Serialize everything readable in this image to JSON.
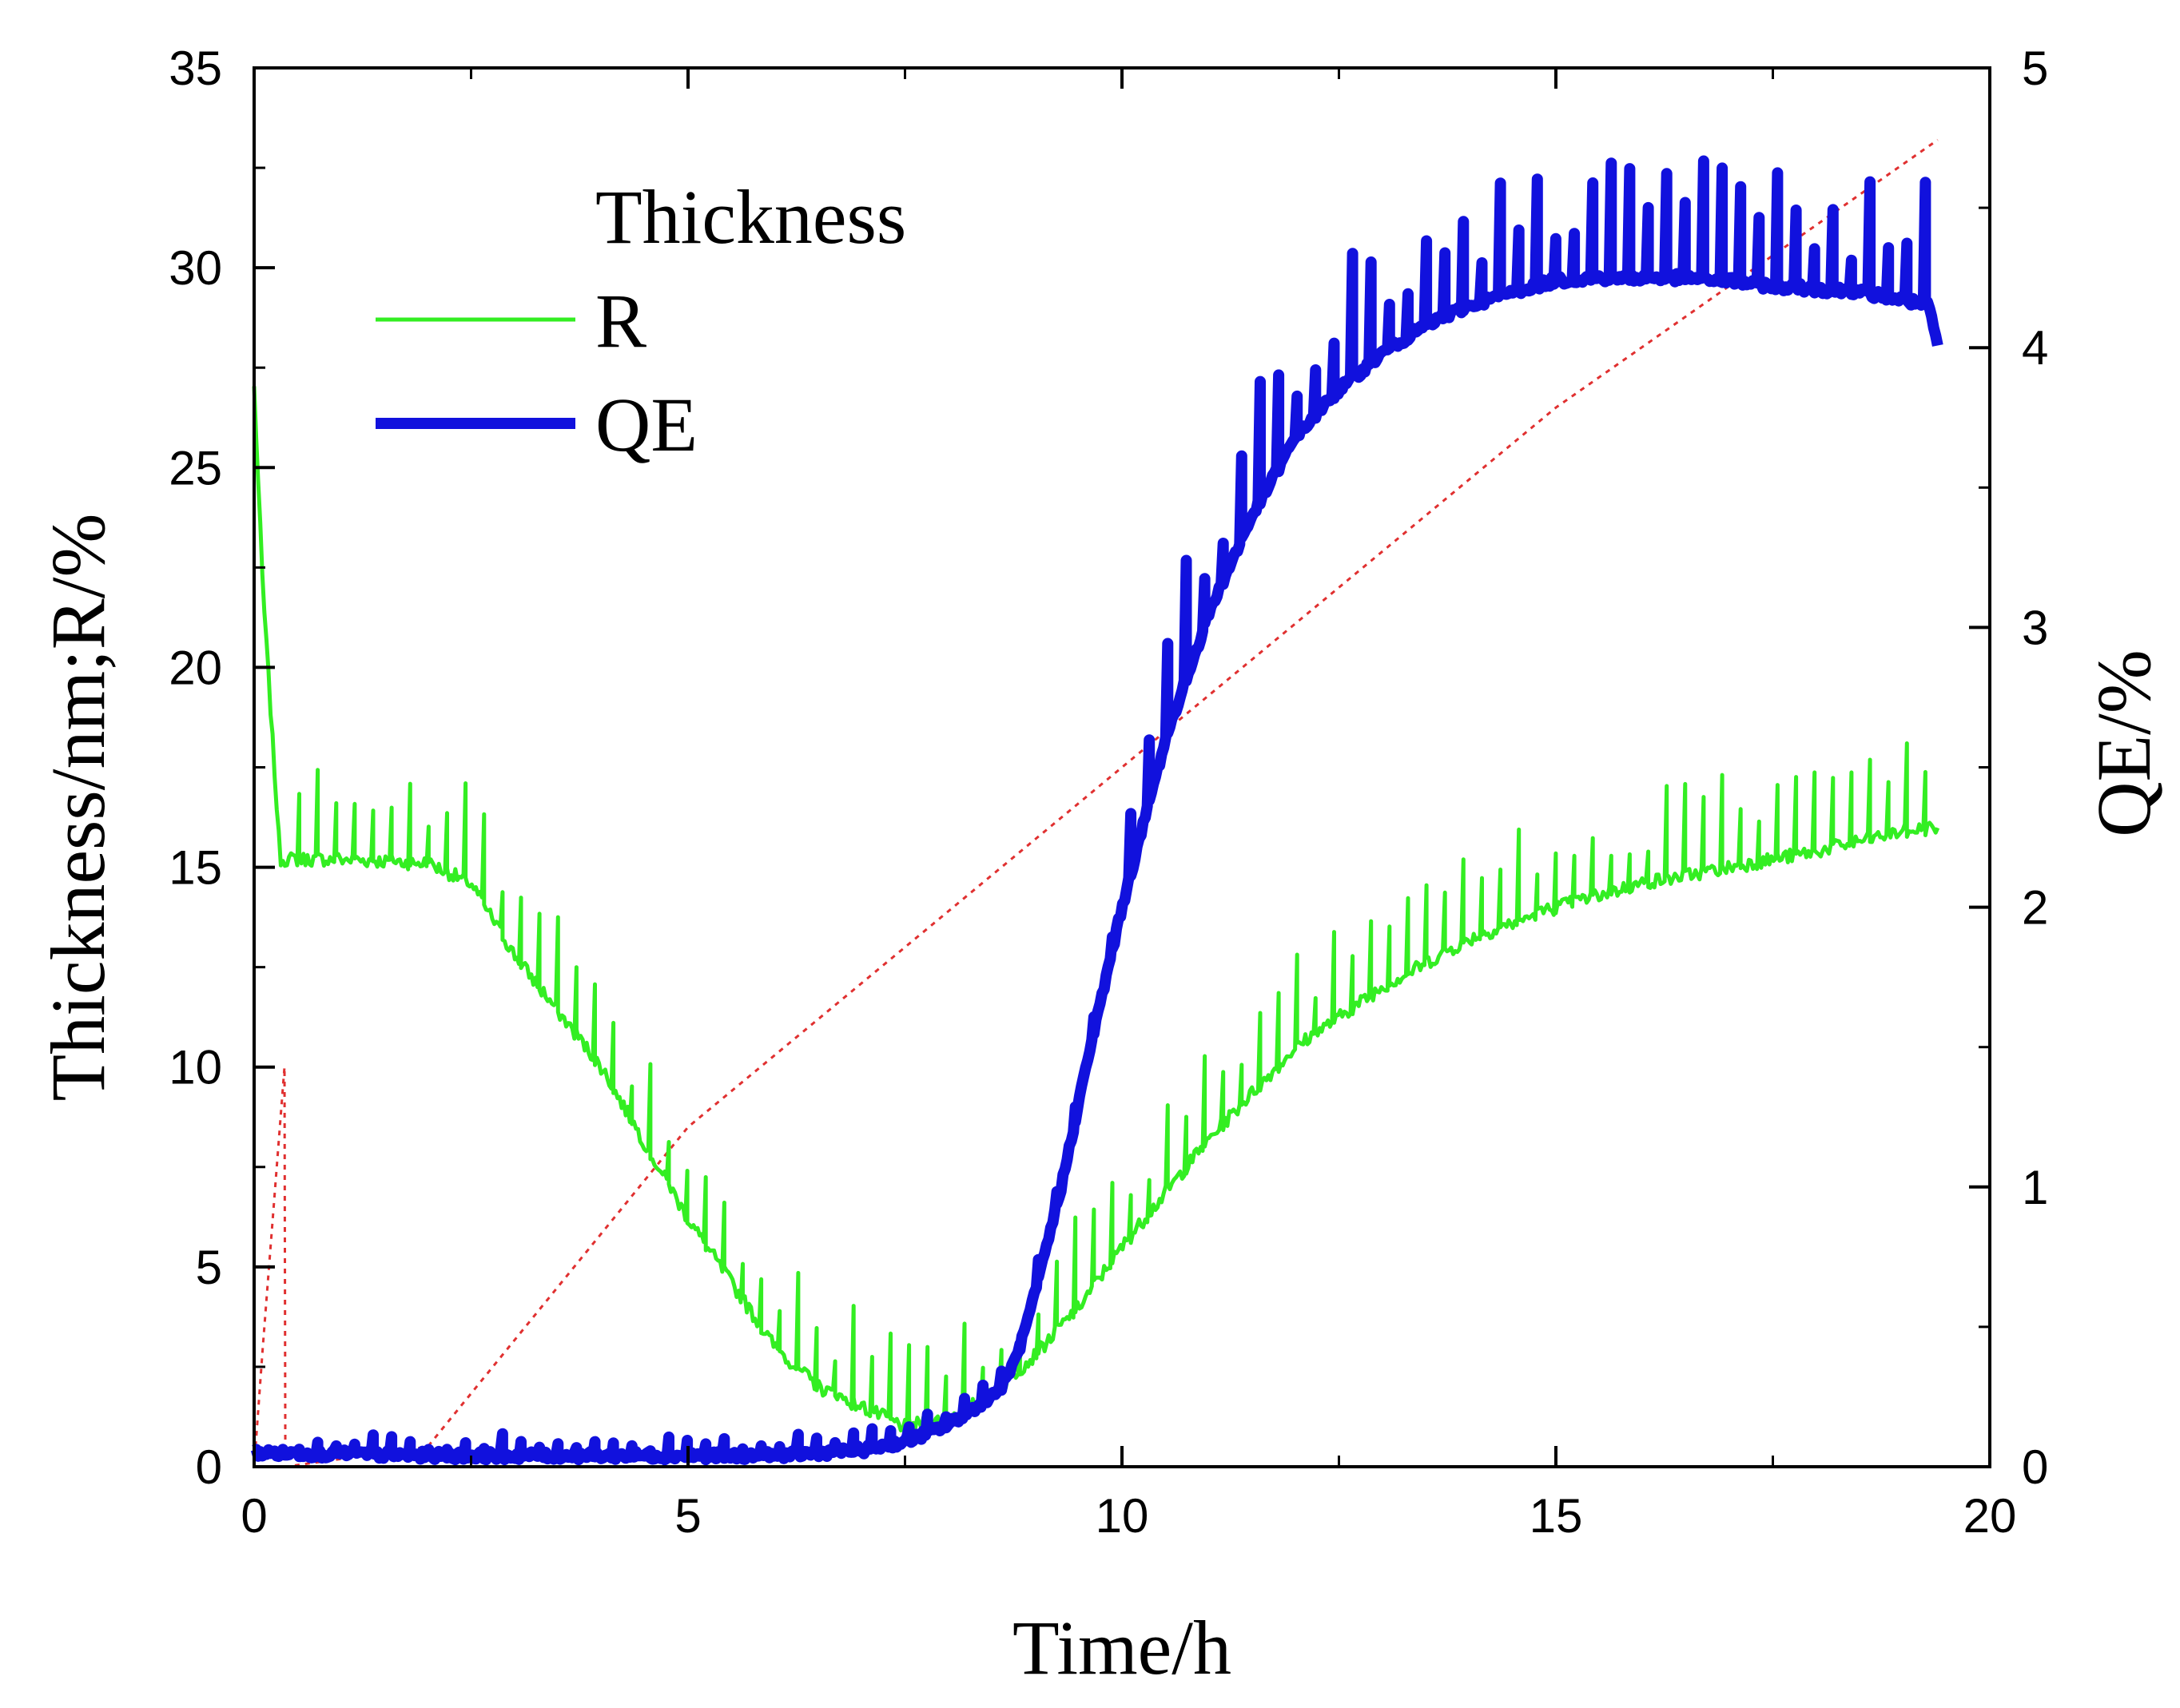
{
  "chart_data": {
    "type": "line",
    "title": "",
    "xlabel": "Time/h",
    "ylabel_left": "Thickness/nm;R/%",
    "ylabel_right": "QE/%",
    "xlim": [
      0,
      20
    ],
    "ylim_left": [
      0,
      35
    ],
    "ylim_right": [
      0,
      5
    ],
    "x_ticks": [
      0,
      5,
      10,
      15,
      20
    ],
    "y_ticks_left": [
      0,
      5,
      10,
      15,
      20,
      25,
      30,
      35
    ],
    "y_ticks_right": [
      0,
      1,
      2,
      3,
      4,
      5
    ],
    "grid": false,
    "legend_position": "top-left",
    "colors": {
      "thickness": "#e03030",
      "r": "#33ee22",
      "qe": "#1111dd"
    },
    "series": [
      {
        "name": "Thickness",
        "axis": "left",
        "style": "dotted",
        "x": [
          0,
          0.1,
          0.35,
          0.36,
          2.0,
          5.0,
          10.0,
          15.0,
          19.4
        ],
        "values": [
          0,
          3,
          10,
          0,
          0.5,
          8.5,
          17.5,
          26.5,
          33.2
        ]
      },
      {
        "name": "R",
        "axis": "left",
        "style": "noisy",
        "x": [
          0,
          0.1,
          0.3,
          1.0,
          2.0,
          2.5,
          3.0,
          4.0,
          5.0,
          6.0,
          6.5,
          7.0,
          7.5,
          8.0,
          8.5,
          9.0,
          9.5,
          10.0,
          11.0,
          12.0,
          13.0,
          14.0,
          15.0,
          16.0,
          17.0,
          18.0,
          19.0,
          19.4
        ],
        "values": [
          27,
          22,
          15.2,
          15.2,
          15.1,
          14.6,
          12.8,
          10.0,
          6.2,
          3.0,
          2.0,
          1.5,
          1.0,
          1.2,
          1.8,
          2.8,
          4.0,
          5.5,
          8.2,
          10.5,
          12.0,
          13.2,
          14.0,
          14.6,
          15.0,
          15.4,
          15.9,
          16.0
        ]
      },
      {
        "name": "QE",
        "axis": "right",
        "style": "thick-noisy",
        "x": [
          0,
          2,
          4,
          6,
          6.5,
          7.0,
          7.5,
          8.0,
          8.3,
          8.6,
          8.8,
          9.0,
          9.3,
          9.6,
          10.0,
          10.5,
          11.0,
          11.5,
          12.0,
          12.5,
          13.0,
          13.5,
          14.0,
          14.5,
          15.0,
          15.5,
          16.0,
          16.5,
          17.0,
          17.5,
          18.0,
          18.5,
          19.0,
          19.3,
          19.4
        ],
        "values": [
          0.05,
          0.04,
          0.04,
          0.04,
          0.05,
          0.06,
          0.09,
          0.15,
          0.21,
          0.28,
          0.4,
          0.62,
          1.0,
          1.45,
          2.0,
          2.6,
          3.05,
          3.4,
          3.68,
          3.85,
          3.98,
          4.08,
          4.15,
          4.2,
          4.24,
          4.25,
          4.25,
          4.25,
          4.24,
          4.22,
          4.21,
          4.2,
          4.17,
          4.15,
          4.0
        ]
      }
    ]
  }
}
